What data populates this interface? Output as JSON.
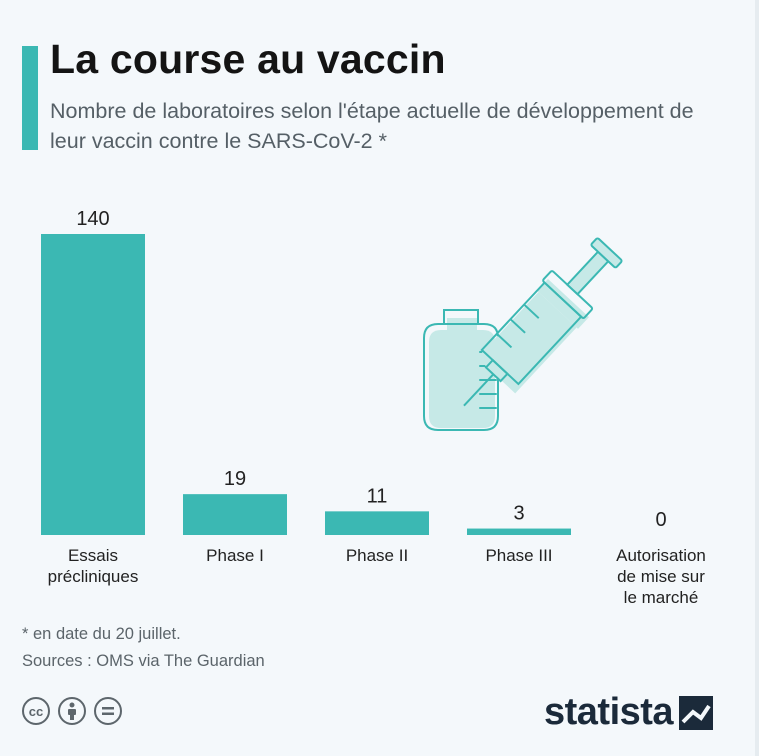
{
  "header": {
    "title": "La course au vaccin",
    "subtitle": "Nombre de laboratoires selon l'étape actuelle de développement de leur vaccin contre le SARS-CoV-2 *"
  },
  "chart_data": {
    "type": "bar",
    "categories": [
      [
        "Essais",
        "précliniques"
      ],
      [
        "Phase I"
      ],
      [
        "Phase II"
      ],
      [
        "Phase III"
      ],
      [
        "Autorisation",
        "de mise sur",
        "le marché"
      ]
    ],
    "values": [
      140,
      19,
      11,
      3,
      0
    ],
    "title": "La course au vaccin",
    "xlabel": "",
    "ylabel": "",
    "ylim": [
      0,
      140
    ],
    "grid": false,
    "legend": "none",
    "bar_color": "#3bb8b3"
  },
  "footer": {
    "footnote": "* en date du 20 juillet.",
    "sources": "Sources : OMS via The Guardian",
    "cc_icons": [
      "creative-commons-icon",
      "attribution-icon",
      "no-derivatives-icon"
    ],
    "logo_text": "statista"
  },
  "colors": {
    "accent": "#3bb8b3",
    "text_dark": "#141414",
    "text_muted": "#555f66",
    "illustration_fill": "#c6e9e7",
    "illustration_stroke": "#3bb8b3"
  }
}
